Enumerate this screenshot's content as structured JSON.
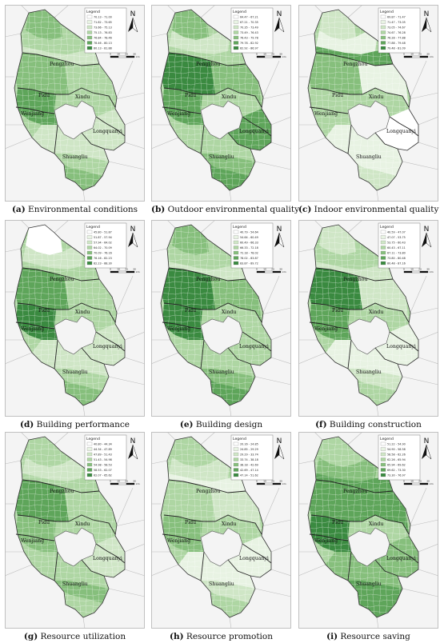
{
  "legend_title": "Legend",
  "north_label": "N",
  "scale_labels": [
    "0",
    "10",
    "20",
    "30"
  ],
  "scale_unit": "km",
  "place_names": [
    "Pengzhou",
    "Pidu",
    "Xindu",
    "Wenjiang",
    "Longquanyi",
    "Shuangliu"
  ],
  "palette": [
    "#ffffff",
    "#e8f3e3",
    "#cfe6c6",
    "#aed6a3",
    "#86bf7c",
    "#5ea55a",
    "#3a8a40"
  ],
  "panels": [
    {
      "id": "a",
      "caption_letter": "(a)",
      "caption_text": "Environmental conditions",
      "legend_ranges": [
        "70.13 - 71.00",
        "71.82 - 73.65",
        "73.66 - 75.13",
        "75.13 - 76.83",
        "76.84 - 78.46",
        "78.46 - 80.13",
        "80.13 - 81.88"
      ],
      "north_levels": [
        4,
        3,
        2
      ],
      "south_levels": [
        2,
        3,
        4
      ],
      "west_levels": [
        4,
        5
      ],
      "east_levels": [
        3,
        2
      ]
    },
    {
      "id": "b",
      "caption_letter": "(b)",
      "caption_text": "Outdoor environmental quality",
      "legend_ranges": [
        "64.47 - 67.21",
        "67.21 - 70.35",
        "70.35 - 73.49",
        "73.49 - 76.43",
        "76.43 - 79.78",
        "79.78 - 82.92",
        "82.92 - 86.97"
      ],
      "north_levels": [
        4,
        2,
        3
      ],
      "south_levels": [
        3,
        4,
        5
      ],
      "west_levels": [
        6,
        5
      ],
      "east_levels": [
        4,
        5
      ]
    },
    {
      "id": "c",
      "caption_letter": "(c)",
      "caption_text": "Indoor environmental quality",
      "legend_ranges": [
        "69.87 - 71.47",
        "71.47 - 73.05",
        "73.05 - 74.67",
        "74.67 - 76.28",
        "76.28 - 77.88",
        "77.88 - 79.48",
        "79.48 - 81.09"
      ],
      "north_levels": [
        2,
        1,
        5
      ],
      "south_levels": [
        1,
        1,
        2
      ],
      "west_levels": [
        4,
        3
      ],
      "east_levels": [
        1,
        0
      ]
    },
    {
      "id": "d",
      "caption_letter": "(d)",
      "caption_text": "Building performance",
      "legend_ranges": [
        "45.80 - 51.87",
        "51.87 - 57.94",
        "57.94 - 64.02",
        "64.02 - 70.09",
        "70.09 - 76.16",
        "76.16 - 82.23",
        "82.23 - 88.30"
      ],
      "north_levels": [
        0,
        2,
        3
      ],
      "south_levels": [
        2,
        3,
        4
      ],
      "west_levels": [
        5,
        6
      ],
      "east_levels": [
        3,
        2
      ]
    },
    {
      "id": "e",
      "caption_letter": "(e)",
      "caption_text": "Building design",
      "legend_ranges": [
        "40.79 - 54.64",
        "54.64 - 60.49",
        "60.49 - 66.33",
        "66.33 - 72.18",
        "72.18 - 78.02",
        "78.02 - 83.87",
        "83.87 - 89.72"
      ],
      "north_levels": [
        4,
        3,
        2
      ],
      "south_levels": [
        3,
        4,
        5
      ],
      "west_levels": [
        6,
        6
      ],
      "east_levels": [
        4,
        3
      ]
    },
    {
      "id": "f",
      "caption_letter": "(f)",
      "caption_text": "Building construction",
      "legend_ranges": [
        "40.59 - 47.07",
        "47.07 - 53.75",
        "53.75 - 60.43",
        "60.43 - 67.11",
        "67.11 - 73.80",
        "73.80 - 80.48",
        "80.48 - 87.16"
      ],
      "north_levels": [
        2,
        3,
        2
      ],
      "south_levels": [
        1,
        2,
        3
      ],
      "west_levels": [
        6,
        5
      ],
      "east_levels": [
        2,
        1
      ]
    },
    {
      "id": "g",
      "caption_letter": "(g)",
      "caption_text": "Resource utilization",
      "legend_ranges": [
        "40.80 - 44.34",
        "44.34 - 47.89",
        "47.89 - 51.43",
        "51.43 - 54.98",
        "54.98 - 58.53",
        "58.53 - 62.07",
        "62.07 - 65.62"
      ],
      "north_levels": [
        3,
        2,
        3
      ],
      "south_levels": [
        3,
        4,
        3
      ],
      "west_levels": [
        5,
        4
      ],
      "east_levels": [
        3,
        2
      ]
    },
    {
      "id": "h",
      "caption_letter": "(h)",
      "caption_text": "Resource promotion",
      "legend_ranges": [
        "20.16 - 24.85",
        "24.85 - 29.29",
        "29.29 - 33.74",
        "33.74 - 38.18",
        "38.18 - 42.69",
        "42.69 - 47.14",
        "47.14 - 51.62"
      ],
      "north_levels": [
        3,
        2,
        1
      ],
      "south_levels": [
        1,
        2,
        3
      ],
      "west_levels": [
        3,
        4
      ],
      "east_levels": [
        2,
        1
      ]
    },
    {
      "id": "i",
      "caption_letter": "(i)",
      "caption_text": "Resource saving",
      "legend_ranges": [
        "51.22 - 54.90",
        "54.90 - 58.58",
        "58.58 - 62.26",
        "62.26 - 65.94",
        "65.94 - 69.62",
        "69.62 - 73.30",
        "73.30 - 76.97"
      ],
      "north_levels": [
        3,
        4,
        5
      ],
      "south_levels": [
        4,
        5,
        5
      ],
      "west_levels": [
        5,
        6
      ],
      "east_levels": [
        5,
        4
      ]
    }
  ]
}
